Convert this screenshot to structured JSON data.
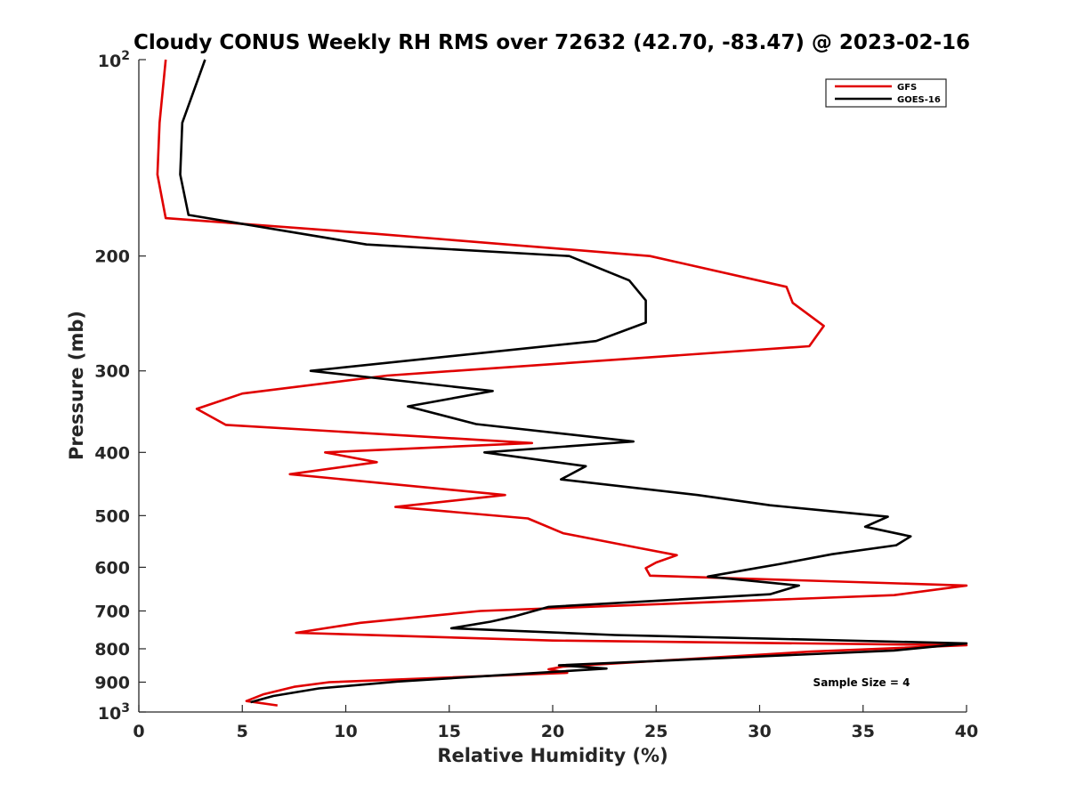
{
  "chart_data": {
    "type": "line",
    "title": "Cloudy CONUS Weekly RH RMS over 72632 (42.70, -83.47) @ 2023-02-16",
    "xlabel": "Relative Humidity (%)",
    "ylabel": "Pressure (mb)",
    "xlim": [
      0,
      40
    ],
    "ylim": [
      100,
      1000
    ],
    "y_scale": "log",
    "y_reversed": true,
    "grid": false,
    "legend_position": "top-right",
    "x_ticks": [
      0,
      5,
      10,
      15,
      20,
      25,
      30,
      35,
      40
    ],
    "y_ticks": [
      {
        "value": 100,
        "base": "10",
        "exp": "2"
      },
      {
        "value": 200,
        "label": "200"
      },
      {
        "value": 300,
        "label": "300"
      },
      {
        "value": 400,
        "label": "400"
      },
      {
        "value": 500,
        "label": "500"
      },
      {
        "value": 600,
        "label": "600"
      },
      {
        "value": 700,
        "label": "700"
      },
      {
        "value": 800,
        "label": "800"
      },
      {
        "value": 900,
        "label": "900"
      },
      {
        "value": 1000,
        "base": "10",
        "exp": "3"
      }
    ],
    "series": [
      {
        "name": "GFS",
        "color": "#e00000",
        "points": [
          [
            1.3,
            100
          ],
          [
            1.0,
            125
          ],
          [
            0.9,
            150
          ],
          [
            1.3,
            175
          ],
          [
            11.5,
            185
          ],
          [
            24.7,
            200
          ],
          [
            31.3,
            223
          ],
          [
            31.6,
            236
          ],
          [
            33.1,
            256
          ],
          [
            32.4,
            275
          ],
          [
            12.0,
            305
          ],
          [
            5.0,
            325
          ],
          [
            2.8,
            343
          ],
          [
            4.2,
            363
          ],
          [
            19.0,
            387
          ],
          [
            9.0,
            400
          ],
          [
            11.5,
            414
          ],
          [
            7.3,
            432
          ],
          [
            17.7,
            465
          ],
          [
            12.4,
            485
          ],
          [
            18.8,
            505
          ],
          [
            20.5,
            532
          ],
          [
            24.1,
            560
          ],
          [
            26.0,
            575
          ],
          [
            25.0,
            590
          ],
          [
            24.5,
            602
          ],
          [
            24.7,
            618
          ],
          [
            40.0,
            640
          ],
          [
            36.5,
            662
          ],
          [
            16.5,
            700
          ],
          [
            10.7,
            730
          ],
          [
            7.6,
            756
          ],
          [
            20.0,
            777
          ],
          [
            40.0,
            790
          ],
          [
            32.5,
            808
          ],
          [
            20.5,
            852
          ],
          [
            19.8,
            860
          ],
          [
            20.7,
            871
          ],
          [
            9.2,
            900
          ],
          [
            7.5,
            915
          ],
          [
            6.0,
            940
          ],
          [
            5.2,
            962
          ],
          [
            6.7,
            977
          ]
        ]
      },
      {
        "name": "GOES-16",
        "color": "#000000",
        "points": [
          [
            3.2,
            100
          ],
          [
            2.1,
            125
          ],
          [
            2.0,
            150
          ],
          [
            2.4,
            173
          ],
          [
            11.0,
            192
          ],
          [
            20.8,
            200
          ],
          [
            23.7,
            218
          ],
          [
            24.5,
            234
          ],
          [
            24.5,
            253
          ],
          [
            22.1,
            270
          ],
          [
            8.3,
            300
          ],
          [
            17.1,
            322
          ],
          [
            13.0,
            340
          ],
          [
            16.3,
            362
          ],
          [
            23.9,
            385
          ],
          [
            16.7,
            400
          ],
          [
            21.6,
            420
          ],
          [
            20.4,
            440
          ],
          [
            27.0,
            465
          ],
          [
            30.5,
            482
          ],
          [
            36.2,
            502
          ],
          [
            35.1,
            520
          ],
          [
            37.3,
            538
          ],
          [
            36.6,
            555
          ],
          [
            33.5,
            573
          ],
          [
            31.0,
            593
          ],
          [
            27.5,
            620
          ],
          [
            31.9,
            640
          ],
          [
            30.5,
            660
          ],
          [
            19.8,
            690
          ],
          [
            18.2,
            713
          ],
          [
            17.0,
            727
          ],
          [
            15.1,
            744
          ],
          [
            23.0,
            762
          ],
          [
            40.0,
            785
          ],
          [
            36.5,
            805
          ],
          [
            20.3,
            848
          ],
          [
            22.6,
            858
          ],
          [
            12.5,
            898
          ],
          [
            8.7,
            920
          ],
          [
            6.5,
            945
          ],
          [
            5.4,
            966
          ]
        ]
      }
    ],
    "annotation": "Sample Size = 4"
  }
}
